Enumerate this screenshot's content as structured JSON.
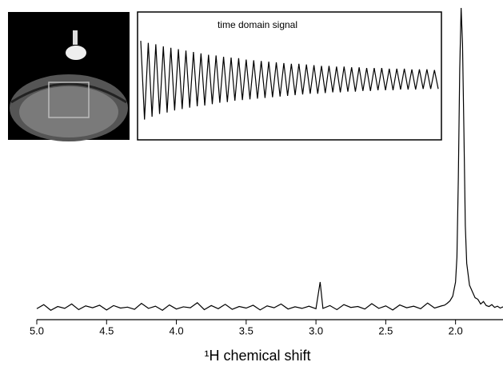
{
  "chart_data": [
    {
      "type": "line",
      "x_label": "¹H chemical shift",
      "color": "#000000",
      "xlim": [
        5.0,
        1.66
      ],
      "ylim": [
        0,
        100
      ],
      "xticks": [
        {
          "value": 5.0,
          "label": "5.0"
        },
        {
          "value": 4.5,
          "label": "4.5"
        },
        {
          "value": 4.0,
          "label": "4.0"
        },
        {
          "value": 3.5,
          "label": "3.5"
        },
        {
          "value": 3.0,
          "label": "3.0"
        },
        {
          "value": 2.5,
          "label": "2.5"
        },
        {
          "value": 2.0,
          "label": "2.0"
        }
      ],
      "x": [
        5.0,
        4.95,
        4.9,
        4.85,
        4.8,
        4.75,
        4.7,
        4.65,
        4.6,
        4.55,
        4.5,
        4.45,
        4.4,
        4.35,
        4.3,
        4.25,
        4.2,
        4.15,
        4.1,
        4.05,
        4.0,
        3.95,
        3.9,
        3.85,
        3.8,
        3.75,
        3.7,
        3.65,
        3.6,
        3.55,
        3.5,
        3.45,
        3.4,
        3.35,
        3.3,
        3.25,
        3.2,
        3.15,
        3.1,
        3.05,
        3.0,
        2.97,
        2.95,
        2.9,
        2.85,
        2.8,
        2.75,
        2.7,
        2.65,
        2.6,
        2.55,
        2.5,
        2.45,
        2.4,
        2.35,
        2.3,
        2.25,
        2.2,
        2.15,
        2.1,
        2.08,
        2.06,
        2.04,
        2.02,
        2.0,
        1.99,
        1.98,
        1.97,
        1.96,
        1.95,
        1.94,
        1.93,
        1.92,
        1.9,
        1.88,
        1.86,
        1.84,
        1.82,
        1.8,
        1.78,
        1.76,
        1.74,
        1.72,
        1.7,
        1.68,
        1.66
      ],
      "values": [
        3.5,
        4.8,
        3.0,
        4.2,
        3.6,
        5.0,
        3.2,
        4.4,
        3.8,
        4.6,
        3.1,
        4.5,
        3.7,
        4.0,
        3.3,
        5.2,
        3.6,
        4.3,
        3.0,
        4.7,
        3.4,
        4.1,
        3.8,
        5.4,
        3.2,
        4.5,
        3.5,
        4.9,
        3.3,
        4.2,
        3.7,
        4.6,
        3.1,
        4.4,
        3.8,
        5.0,
        3.4,
        4.1,
        3.6,
        4.3,
        3.5,
        12.0,
        3.6,
        4.5,
        3.2,
        4.8,
        3.9,
        4.2,
        3.4,
        5.1,
        3.6,
        4.4,
        3.1,
        4.7,
        3.8,
        4.3,
        3.5,
        5.3,
        3.7,
        4.4,
        4.6,
        5.2,
        6.0,
        7.5,
        12.0,
        20.0,
        45.0,
        80.0,
        99.5,
        88.0,
        60.0,
        30.0,
        18.0,
        11.0,
        9.0,
        7.0,
        6.5,
        5.0,
        5.8,
        4.5,
        4.2,
        4.8,
        3.9,
        4.3,
        3.7,
        4.1
      ]
    },
    {
      "type": "line",
      "title": "time domain signal",
      "color": "#000000",
      "ylim": [
        -70,
        70
      ],
      "values": [
        55,
        -58,
        52,
        -54,
        50,
        -50,
        47,
        -48,
        45,
        -45,
        43,
        -43,
        41,
        -41,
        39,
        -39,
        37,
        -38,
        35,
        -36,
        34,
        -34,
        32,
        -33,
        31,
        -31,
        30,
        -30,
        28,
        -29,
        27,
        -28,
        26,
        -27,
        25,
        -26,
        24,
        -25,
        23,
        -24,
        22,
        -23,
        22,
        -22,
        21,
        -21,
        20,
        -21,
        19,
        -20,
        19,
        -19,
        18,
        -19,
        18,
        -18,
        17,
        -18,
        17,
        -17,
        16,
        -17,
        16,
        -16,
        16,
        -16,
        15,
        -16,
        15,
        -15,
        15,
        -15,
        14,
        -15,
        14,
        -14,
        14,
        -14,
        13,
        -14
      ]
    }
  ]
}
